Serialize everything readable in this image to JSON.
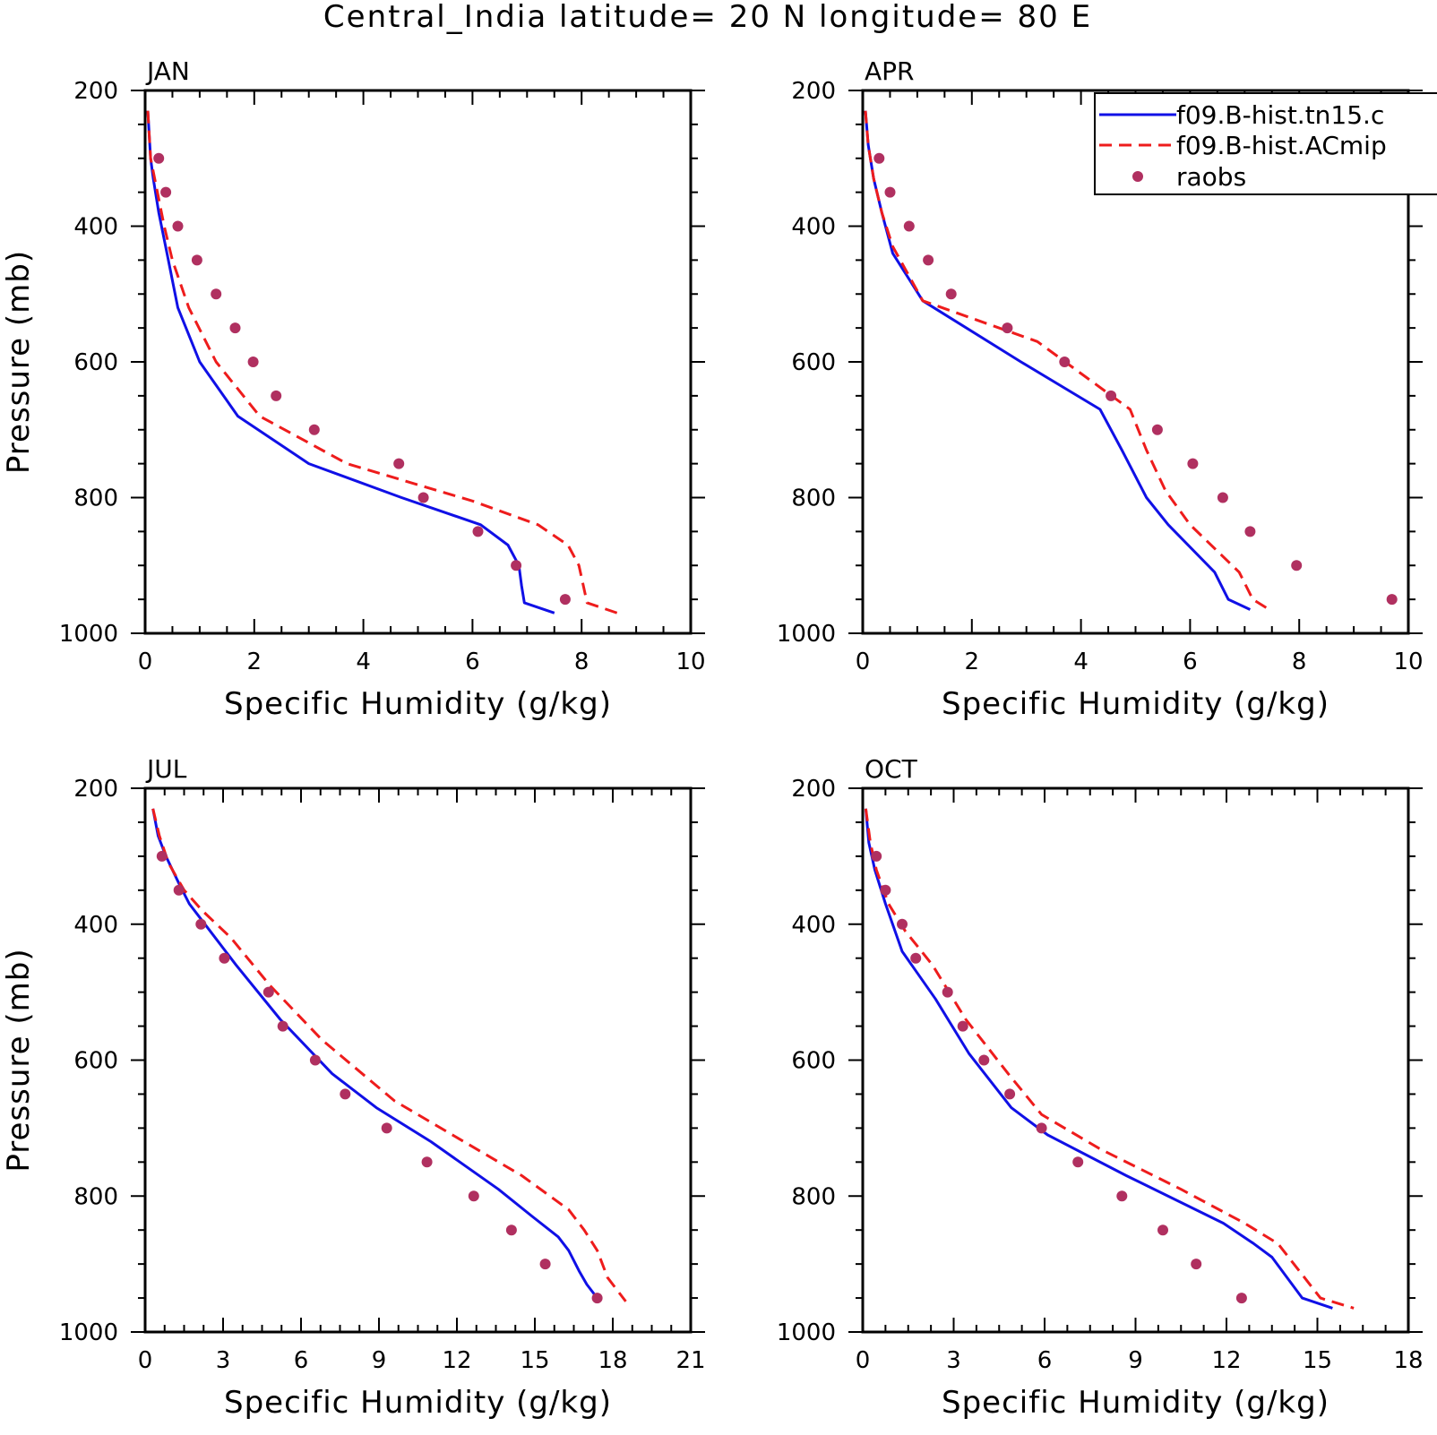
{
  "title": "Central_India  latitude= 20 N longitude= 80 E",
  "legend": {
    "entries": [
      {
        "label": "f09.B-hist.tn15.c",
        "color": "#1010e6",
        "style": "solid"
      },
      {
        "label": "f09.B-hist.ACmip",
        "color": "#ee1c1c",
        "style": "dashed"
      },
      {
        "label": "raobs",
        "color": "#b03060",
        "style": "marker"
      }
    ]
  },
  "chart_data": [
    {
      "type": "line",
      "panel": "JAN",
      "xlabel": "Specific Humidity (g/kg)",
      "ylabel": "Pressure (mb)",
      "xlim": [
        0,
        10
      ],
      "ylim": [
        1000,
        200
      ],
      "y_reversed": true,
      "xticks": [
        0,
        2,
        4,
        6,
        8,
        10
      ],
      "yticks": [
        200,
        400,
        600,
        800,
        1000
      ],
      "series": [
        {
          "name": "f09.B-hist.tn15.c",
          "x": [
            0.05,
            0.1,
            0.15,
            0.25,
            0.4,
            0.6,
            1.0,
            1.7,
            3.0,
            4.7,
            6.15,
            6.65,
            6.85,
            6.9,
            6.95,
            7.5
          ],
          "y": [
            230,
            300,
            330,
            380,
            440,
            520,
            600,
            680,
            750,
            800,
            840,
            870,
            900,
            930,
            955,
            970
          ]
        },
        {
          "name": "f09.B-hist.ACmip",
          "x": [
            0.05,
            0.1,
            0.2,
            0.35,
            0.5,
            0.8,
            1.3,
            2.1,
            3.7,
            6.0,
            7.2,
            7.75,
            7.95,
            8.1,
            8.65
          ],
          "y": [
            230,
            300,
            340,
            400,
            450,
            520,
            600,
            680,
            750,
            805,
            840,
            870,
            900,
            955,
            970
          ]
        },
        {
          "name": "raobs",
          "x": [
            0.25,
            0.38,
            0.6,
            0.95,
            1.3,
            1.65,
            1.98,
            2.4,
            3.1,
            4.65,
            5.1,
            6.1,
            6.8,
            7.7
          ],
          "y": [
            300,
            350,
            400,
            450,
            500,
            550,
            600,
            650,
            700,
            750,
            800,
            850,
            900,
            950
          ]
        }
      ]
    },
    {
      "type": "line",
      "panel": "APR",
      "xlabel": "Specific Humidity (g/kg)",
      "ylabel": "",
      "xlim": [
        0,
        10
      ],
      "ylim": [
        1000,
        200
      ],
      "y_reversed": true,
      "xticks": [
        0,
        2,
        4,
        6,
        8,
        10
      ],
      "yticks": [
        200,
        400,
        600,
        800,
        1000
      ],
      "series": [
        {
          "name": "f09.B-hist.tn15.c",
          "x": [
            0.05,
            0.1,
            0.2,
            0.35,
            0.55,
            1.1,
            2.9,
            4.35,
            4.75,
            5.2,
            5.6,
            6.45,
            6.7,
            7.1
          ],
          "y": [
            230,
            280,
            330,
            380,
            440,
            510,
            600,
            670,
            730,
            800,
            840,
            910,
            950,
            965
          ]
        },
        {
          "name": "f09.B-hist.ACmip",
          "x": [
            0.05,
            0.1,
            0.2,
            0.35,
            0.55,
            1.1,
            3.2,
            4.9,
            5.2,
            5.55,
            6.0,
            6.9,
            7.15,
            7.45
          ],
          "y": [
            230,
            280,
            330,
            380,
            430,
            510,
            570,
            670,
            730,
            790,
            840,
            910,
            950,
            965
          ]
        },
        {
          "name": "raobs",
          "x": [
            0.3,
            0.5,
            0.85,
            1.2,
            1.62,
            2.65,
            3.7,
            4.55,
            5.4,
            6.05,
            6.6,
            7.1,
            7.95,
            9.7
          ],
          "y": [
            300,
            350,
            400,
            450,
            500,
            550,
            600,
            650,
            700,
            750,
            800,
            850,
            900,
            950
          ]
        }
      ]
    },
    {
      "type": "line",
      "panel": "JUL",
      "xlabel": "Specific Humidity (g/kg)",
      "ylabel": "Pressure (mb)",
      "xlim": [
        0,
        21
      ],
      "ylim": [
        1000,
        200
      ],
      "y_reversed": true,
      "xticks": [
        0,
        3,
        6,
        9,
        12,
        15,
        18,
        21
      ],
      "yticks": [
        200,
        400,
        600,
        800,
        1000
      ],
      "series": [
        {
          "name": "f09.B-hist.tn15.c",
          "x": [
            0.3,
            0.5,
            0.8,
            1.3,
            1.7,
            2.5,
            3.5,
            5.2,
            7.2,
            8.9,
            11.0,
            13.6,
            14.9,
            15.9,
            16.3,
            16.7,
            17.0,
            17.5
          ],
          "y": [
            230,
            270,
            300,
            340,
            370,
            410,
            460,
            540,
            620,
            670,
            720,
            790,
            830,
            860,
            880,
            910,
            930,
            955
          ]
        },
        {
          "name": "f09.B-hist.ACmip",
          "x": [
            0.3,
            0.55,
            0.9,
            1.5,
            2.2,
            3.3,
            4.8,
            6.8,
            9.6,
            14.5,
            16.3,
            16.9,
            17.4,
            17.8,
            18.5
          ],
          "y": [
            230,
            270,
            310,
            350,
            380,
            420,
            490,
            570,
            660,
            770,
            820,
            850,
            880,
            920,
            955
          ]
        },
        {
          "name": "raobs",
          "x": [
            0.65,
            1.3,
            2.15,
            3.05,
            4.75,
            5.3,
            6.55,
            7.7,
            9.3,
            10.85,
            12.65,
            14.1,
            15.4,
            17.4
          ],
          "y": [
            300,
            350,
            400,
            450,
            500,
            550,
            600,
            650,
            700,
            750,
            800,
            850,
            900,
            950
          ]
        }
      ]
    },
    {
      "type": "line",
      "panel": "OCT",
      "xlabel": "Specific Humidity (g/kg)",
      "ylabel": "",
      "xlim": [
        0,
        18
      ],
      "ylim": [
        1000,
        200
      ],
      "y_reversed": true,
      "xticks": [
        0,
        3,
        6,
        9,
        12,
        15,
        18
      ],
      "yticks": [
        200,
        400,
        600,
        800,
        1000
      ],
      "series": [
        {
          "name": "f09.B-hist.tn15.c",
          "x": [
            0.1,
            0.2,
            0.4,
            0.75,
            1.3,
            2.4,
            3.5,
            4.9,
            6.1,
            8.7,
            11.9,
            12.9,
            13.5,
            14.5,
            15.5
          ],
          "y": [
            230,
            280,
            320,
            370,
            440,
            510,
            590,
            670,
            710,
            770,
            840,
            870,
            890,
            950,
            965
          ]
        },
        {
          "name": "f09.B-hist.ACmip",
          "x": [
            0.1,
            0.25,
            0.45,
            0.85,
            1.4,
            2.3,
            3.4,
            4.8,
            5.9,
            7.8,
            10.5,
            12.6,
            13.7,
            14.4,
            15.1,
            16.2
          ],
          "y": [
            230,
            280,
            320,
            370,
            410,
            460,
            540,
            620,
            680,
            730,
            790,
            840,
            870,
            910,
            950,
            965
          ]
        },
        {
          "name": "raobs",
          "x": [
            0.45,
            0.75,
            1.3,
            1.75,
            2.8,
            3.3,
            4.0,
            4.85,
            5.9,
            7.1,
            8.55,
            9.9,
            11.0,
            12.5
          ],
          "y": [
            300,
            350,
            400,
            450,
            500,
            550,
            600,
            650,
            700,
            750,
            800,
            850,
            900,
            950
          ]
        }
      ]
    }
  ]
}
